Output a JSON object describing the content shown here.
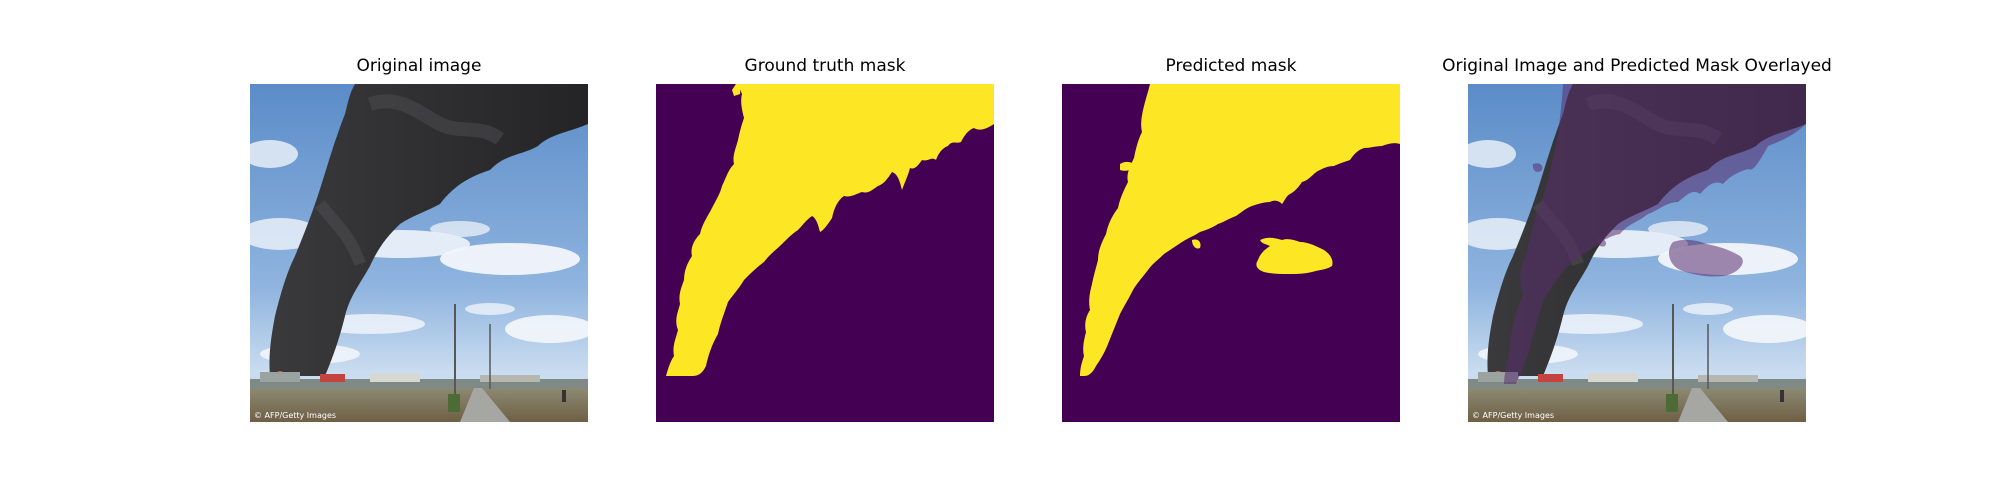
{
  "figure": {
    "panels": [
      {
        "title": "Original image",
        "content": "photo of a black smoke plume rising from an industrial site under a blue sky, with a road and fields in the foreground"
      },
      {
        "title": "Ground truth mask",
        "content": "binary mask: yellow smoke region on dark purple background"
      },
      {
        "title": "Predicted mask",
        "content": "binary mask: yellow smoke region plus a small detached blob, on dark purple background"
      },
      {
        "title": "Original Image and Predicted Mask Overlayed",
        "content": "photo with semi-transparent purple overlay on the predicted smoke region"
      }
    ],
    "watermark": "© AFP/Getty Images"
  },
  "colors": {
    "mask_foreground": "#FDE725",
    "mask_background": "#440154",
    "overlay": "#5a2d6e",
    "sky_top": "#5f8fc9",
    "sky_bottom": "#b7d0ec",
    "smoke": "#2e2e30"
  }
}
